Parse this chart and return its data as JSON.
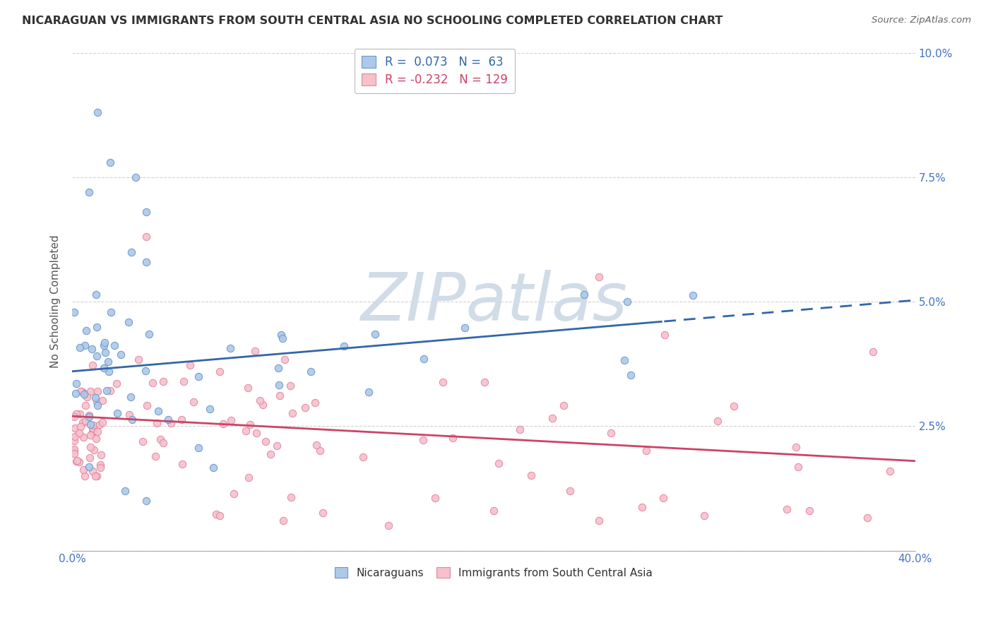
{
  "title": "NICARAGUAN VS IMMIGRANTS FROM SOUTH CENTRAL ASIA NO SCHOOLING COMPLETED CORRELATION CHART",
  "source": "Source: ZipAtlas.com",
  "ylabel": "No Schooling Completed",
  "xlim": [
    0.0,
    0.4
  ],
  "ylim": [
    0.0,
    0.1
  ],
  "blue_R": 0.073,
  "blue_N": 63,
  "pink_R": -0.232,
  "pink_N": 129,
  "blue_face_color": "#aec8e8",
  "blue_edge_color": "#6699cc",
  "pink_face_color": "#f7c0cc",
  "pink_edge_color": "#e088a0",
  "blue_line_color": "#3366aa",
  "pink_line_color": "#cc4466",
  "legend_label_blue": "Nicaraguans",
  "legend_label_pink": "Immigrants from South Central Asia",
  "legend_R_color": "#3366aa",
  "legend_N_color": "#3366aa",
  "legend_Rpink_color": "#cc4466",
  "tick_color": "#4472c4",
  "title_color": "#333333",
  "source_color": "#666666",
  "watermark_text": "ZIPatlas",
  "watermark_color": "#d0dce8",
  "grid_color": "#cccccc",
  "blue_trend_start_y": 0.036,
  "blue_trend_end_x": 0.28,
  "blue_trend_end_y": 0.046,
  "blue_trend_dashed_end_y": 0.048,
  "pink_trend_start_y": 0.027,
  "pink_trend_end_y": 0.018
}
